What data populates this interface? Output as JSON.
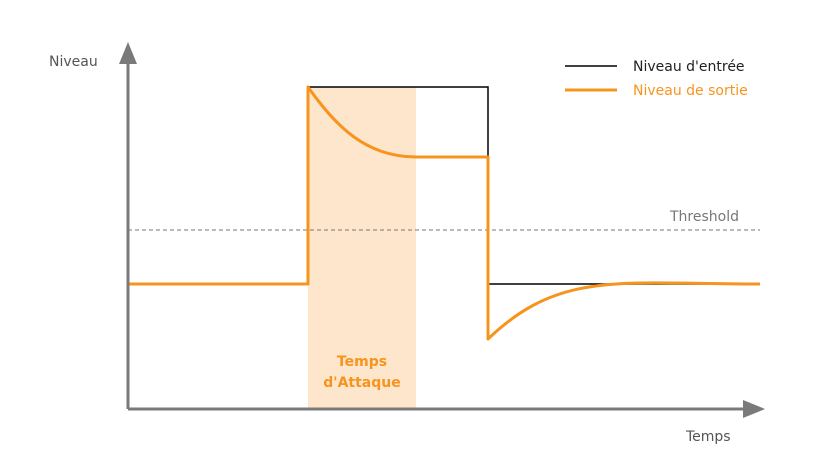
{
  "axes": {
    "y_label": "Niveau",
    "x_label": "Temps"
  },
  "legend": {
    "input_label": "Niveau d'entrée",
    "output_label": "Niveau de sortie"
  },
  "threshold": {
    "label": "Threshold"
  },
  "attack": {
    "line1": "Temps",
    "line2": "d'Attaque"
  },
  "colors": {
    "axis": "#7a7a7a",
    "input_line": "#000000",
    "output_line": "#f7941d",
    "attack_fill": "#fde6cc",
    "threshold_line": "#777777"
  }
}
